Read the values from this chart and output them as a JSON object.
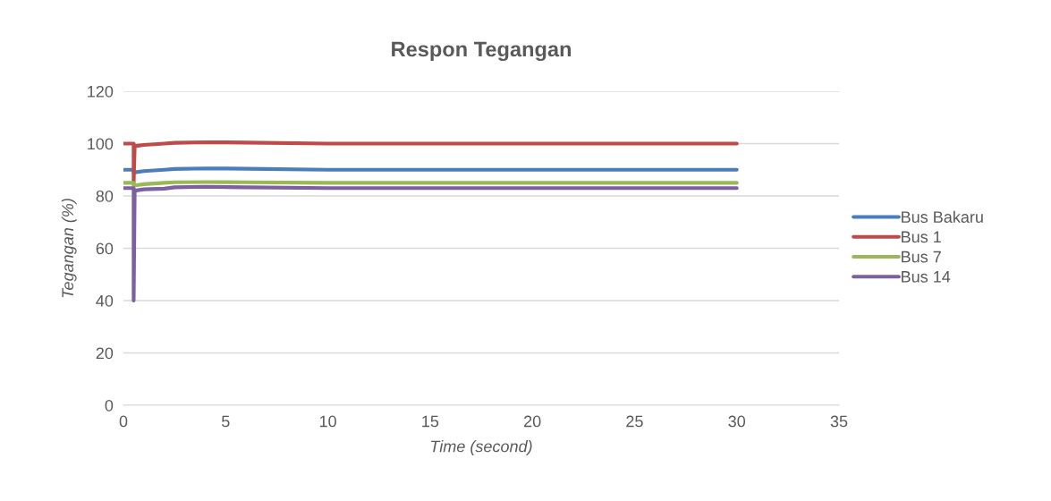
{
  "chart_data": {
    "type": "line",
    "title": "Respon Tegangan",
    "xlabel": "Time (second)",
    "ylabel": "Tegangan (%)",
    "x": [
      0,
      0.5,
      0.5,
      0.55,
      1,
      2,
      2.5,
      4,
      6,
      10,
      20,
      30
    ],
    "series": [
      {
        "name": "Bus Bakaru",
        "color": "#4a7ebb",
        "values": [
          90,
          90,
          89,
          89,
          89.5,
          90,
          90.3,
          90.5,
          90.4,
          90,
          90,
          90
        ]
      },
      {
        "name": "Bus 1",
        "color": "#be4b48",
        "values": [
          100,
          100,
          85,
          99,
          99.5,
          100,
          100.3,
          100.5,
          100.4,
          100,
          100,
          100
        ]
      },
      {
        "name": "Bus 7",
        "color": "#98b954",
        "values": [
          85,
          85,
          84,
          84,
          84.5,
          85,
          85.2,
          85.3,
          85.2,
          85,
          85,
          85
        ]
      },
      {
        "name": "Bus 14",
        "color": "#7d60a0",
        "values": [
          83,
          83,
          40,
          82,
          82.5,
          82.8,
          83.3,
          83.5,
          83.3,
          83,
          83,
          83
        ]
      }
    ],
    "xlim": [
      0,
      35
    ],
    "xticks": [
      0,
      5,
      10,
      15,
      20,
      25,
      30,
      35
    ],
    "ylim": [
      0,
      120
    ],
    "yticks": [
      0,
      20,
      40,
      60,
      80,
      100,
      120
    ],
    "grid": "y",
    "legend": "right",
    "marker": "none",
    "line_style": "solid"
  }
}
